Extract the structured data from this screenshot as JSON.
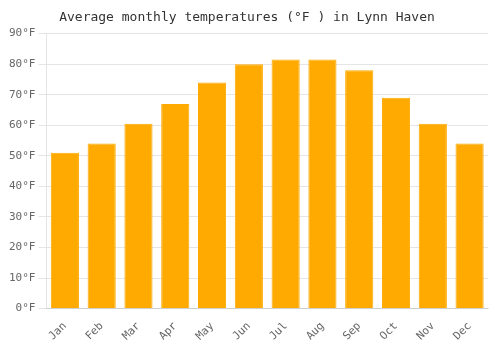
{
  "chart_data": {
    "type": "bar",
    "title": "Average monthly temperatures (°F ) in Lynn Haven",
    "categories": [
      "Jan",
      "Feb",
      "Mar",
      "Apr",
      "May",
      "Jun",
      "Jul",
      "Aug",
      "Sep",
      "Oct",
      "Nov",
      "Dec"
    ],
    "values": [
      51,
      54,
      60.5,
      67,
      74,
      80,
      81.5,
      81.5,
      78,
      69,
      60.5,
      54
    ],
    "color": "#FFAA00",
    "ylim": [
      0,
      90
    ],
    "yticks": [
      {
        "value": 0,
        "label": "0°F"
      },
      {
        "value": 10,
        "label": "10°F"
      },
      {
        "value": 20,
        "label": "20°F"
      },
      {
        "value": 30,
        "label": "30°F"
      },
      {
        "value": 40,
        "label": "40°F"
      },
      {
        "value": 50,
        "label": "50°F"
      },
      {
        "value": 60,
        "label": "60°F"
      },
      {
        "value": 70,
        "label": "70°F"
      },
      {
        "value": 80,
        "label": "80°F"
      },
      {
        "value": 90,
        "label": "90°F"
      }
    ],
    "grid": true
  }
}
